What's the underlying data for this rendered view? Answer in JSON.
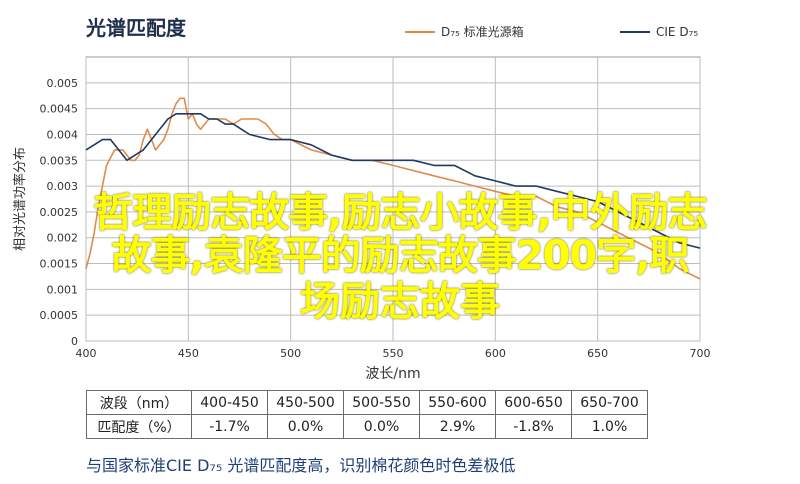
{
  "chart_data": {
    "type": "line",
    "title": "光谱匹配度",
    "xlabel": "波长/nm",
    "ylabel": "相对光谱功率分布",
    "xlim": [
      400,
      700
    ],
    "ylim": [
      0,
      0.0055
    ],
    "x_ticks": [
      "400",
      "450",
      "500",
      "550",
      "600",
      "650",
      "700"
    ],
    "y_ticks": [
      "0",
      "0.0005",
      "0.001",
      "0.0015",
      "0.002",
      "0.0025",
      "0.003",
      "0.0035",
      "0.004",
      "0.0045",
      "0.005"
    ],
    "grid": true,
    "legend_position": "top-right",
    "series": [
      {
        "name": "D₇₅ 标准光源箱",
        "color": "#e08b4a",
        "x": [
          400,
          402,
          404,
          406,
          408,
          410,
          414,
          418,
          420,
          422,
          424,
          426,
          428,
          430,
          432,
          434,
          436,
          438,
          440,
          442,
          444,
          446,
          448,
          450,
          452,
          454,
          456,
          460,
          464,
          468,
          472,
          476,
          480,
          484,
          488,
          492,
          496,
          500,
          510,
          520,
          530,
          540,
          550,
          560,
          570,
          580,
          590,
          600,
          610,
          620,
          630,
          640,
          650,
          660,
          670,
          680,
          690,
          700
        ],
        "y": [
          0.0014,
          0.0017,
          0.0021,
          0.0026,
          0.003,
          0.0034,
          0.0037,
          0.0037,
          0.0036,
          0.0035,
          0.0035,
          0.0036,
          0.0039,
          0.0041,
          0.0039,
          0.0037,
          0.0038,
          0.0039,
          0.0041,
          0.0044,
          0.0046,
          0.0047,
          0.0047,
          0.0043,
          0.0044,
          0.0042,
          0.0041,
          0.0043,
          0.0043,
          0.0043,
          0.0042,
          0.0043,
          0.0043,
          0.0043,
          0.0042,
          0.004,
          0.0039,
          0.0039,
          0.0037,
          0.0036,
          0.0035,
          0.0035,
          0.0034,
          0.0033,
          0.0032,
          0.0031,
          0.003,
          0.0029,
          0.0028,
          0.0028,
          0.0026,
          0.0025,
          0.0023,
          0.0021,
          0.0019,
          0.0017,
          0.0014,
          0.0012
        ]
      },
      {
        "name": "CIE D₇₅",
        "color": "#1f3864",
        "x": [
          400,
          404,
          408,
          412,
          416,
          420,
          424,
          428,
          432,
          436,
          440,
          444,
          448,
          452,
          456,
          460,
          464,
          468,
          472,
          476,
          480,
          490,
          500,
          510,
          520,
          530,
          540,
          550,
          560,
          570,
          580,
          590,
          600,
          610,
          620,
          630,
          640,
          650,
          660,
          670,
          680,
          690,
          700
        ],
        "y": [
          0.0037,
          0.0038,
          0.0039,
          0.0039,
          0.0037,
          0.0035,
          0.0036,
          0.0037,
          0.0039,
          0.0041,
          0.0043,
          0.0044,
          0.0044,
          0.0044,
          0.0044,
          0.0043,
          0.0043,
          0.0042,
          0.0042,
          0.0041,
          0.004,
          0.0039,
          0.0039,
          0.0038,
          0.0036,
          0.0035,
          0.0035,
          0.0035,
          0.0035,
          0.0034,
          0.0034,
          0.0032,
          0.0031,
          0.003,
          0.003,
          0.0029,
          0.0028,
          0.0027,
          0.0025,
          0.0023,
          0.0021,
          0.0019,
          0.0018
        ]
      }
    ]
  },
  "overlay": {
    "line1": "哲理励志故事,励志小故事,中外励志",
    "line2": "故事,袁隆平的励志故事200字,职",
    "line3": "场励志故事"
  },
  "table": {
    "rows": [
      [
        "波段（nm）",
        "400-450",
        "450-500",
        "500-550",
        "550-600",
        "600-650",
        "650-700"
      ],
      [
        "匹配度（%）",
        "-1.7%",
        "0.0%",
        "0.0%",
        "2.9%",
        "-1.8%",
        "1.0%"
      ]
    ]
  },
  "footer_note": "与国家标准CIE D₇₅ 光谱匹配度高，识别棉花颜色时色差极低"
}
